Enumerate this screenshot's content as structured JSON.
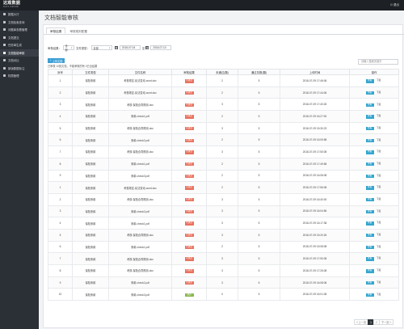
{
  "app": {
    "logo": "达观数据",
    "logo_sub": "DATA GRAND",
    "exit_label": "退出"
  },
  "sidebar": {
    "items": [
      {
        "label": "数据大厅",
        "active": false
      },
      {
        "label": "文档检索查询",
        "active": false
      },
      {
        "label": "问题库查看管理",
        "active": false
      },
      {
        "label": "文档提交",
        "active": false
      },
      {
        "label": "任务单生成",
        "active": false
      },
      {
        "label": "文档智能审核",
        "active": true
      },
      {
        "label": "文档对比",
        "active": false
      },
      {
        "label": "新版数据标注",
        "active": false
      },
      {
        "label": "权限管理",
        "active": false
      }
    ]
  },
  "page": {
    "title": "文档智能审核"
  },
  "tabs": [
    {
      "label": "审核结果",
      "active": true
    },
    {
      "label": "审核规则配置",
      "active": false
    }
  ],
  "filter": {
    "result_label": "审核结果：",
    "result_value": "全部",
    "type_label": "文件类型：",
    "type_value": "全部",
    "date_start": "2018-07-04",
    "date_to": "至",
    "date_end": "2018-07-10"
  },
  "upload_button": "上传文档",
  "hint": "已审核 10篇文档，不能审核的有 0已出结果",
  "search": {
    "placeholder": "请输入搜索关键字"
  },
  "table": {
    "columns": [
      "序号",
      "文件类型",
      "文件名称",
      "审核结果",
      "未通过(题)",
      "通过总数(题)",
      "上传时间",
      "操作"
    ],
    "rows": [
      {
        "no": "1",
        "type": "保险条款",
        "name": "考核规定-民法变动-word.doc",
        "result": "不通过",
        "failed": "2",
        "passed": "5",
        "time": "2018-07-09 17:46:06"
      },
      {
        "no": "2",
        "type": "保险条款",
        "name": "考核规定-民法变动-word.doc",
        "result": "不通过",
        "failed": "2",
        "passed": "5",
        "time": "2018-07-09 17:44:06"
      },
      {
        "no": "3",
        "type": "保险条款",
        "name": "考核-保险合同规则-doc",
        "result": "不通过",
        "failed": "3",
        "passed": "5",
        "time": "2018-07-09 17:40:26"
      },
      {
        "no": "4",
        "type": "保险条款",
        "name": "条款-check1.pdf",
        "result": "不通过",
        "failed": "2",
        "passed": "5",
        "time": "2018-07-09 16:27:00"
      },
      {
        "no": "5",
        "type": "保险条款",
        "name": "考核-保险合同规则-doc",
        "result": "不通过",
        "failed": "3",
        "passed": "5",
        "time": "2018-07-09 15:30:23"
      },
      {
        "no": "6",
        "type": "保险条款",
        "name": "条款-check2.pdf",
        "result": "不通过",
        "failed": "2",
        "passed": "5",
        "time": "2018-07-09 15:09:58"
      },
      {
        "no": "7",
        "type": "保险条款",
        "name": "考核-保险合同规则-doc",
        "result": "不通过",
        "failed": "3",
        "passed": "5",
        "time": "2018-07-09 17:50:08"
      },
      {
        "no": "8",
        "type": "保险条款",
        "name": "条款-check1.pdf",
        "result": "不通过",
        "failed": "2",
        "passed": "5",
        "time": "2018-07-09 17:49:58"
      },
      {
        "no": "9",
        "type": "保险条款",
        "name": "条款-check3.pdf",
        "result": "不通过",
        "failed": "2",
        "passed": "5",
        "time": "2018-07-09 16:08:08"
      },
      {
        "no": "1",
        "type": "保险条款",
        "name": "考核规定-民法变动-word.doc",
        "result": "不通过",
        "failed": "2",
        "passed": "5",
        "time": "2018-07-09 17:56:08"
      },
      {
        "no": "2",
        "type": "保险条款",
        "name": "考核-保险合同规则-doc",
        "result": "不通过",
        "failed": "3",
        "passed": "5",
        "time": "2018-07-09 16:40:00"
      },
      {
        "no": "3",
        "type": "保险条款",
        "name": "条款-check2.pdf",
        "result": "不通过",
        "failed": "3",
        "passed": "5",
        "time": "2018-07-09 16:04:56"
      },
      {
        "no": "4",
        "type": "保险条款",
        "name": "条款-check1.pdf",
        "result": "不通过",
        "failed": "3",
        "passed": "5",
        "time": "2018-07-09 16:17:38"
      },
      {
        "no": "5",
        "type": "保险条款",
        "name": "考核-保险合同规则-doc",
        "result": "不通过",
        "failed": "3",
        "passed": "5",
        "time": "2018-07-09 15:20:26"
      },
      {
        "no": "6",
        "type": "保险条款",
        "name": "条款-check1.pdf",
        "result": "不通过",
        "failed": "2",
        "passed": "5",
        "time": "2018-07-09 15:08:08"
      },
      {
        "no": "7",
        "type": "保险条款",
        "name": "考核-保险合同规则-doc",
        "result": "不通过",
        "failed": "3",
        "passed": "5",
        "time": "2018-07-09 17:50:08"
      },
      {
        "no": "8",
        "type": "保险条款",
        "name": "考核-保险合同规则-doc",
        "result": "不通过",
        "failed": "3",
        "passed": "5",
        "time": "2018-07-09 17:26:08"
      },
      {
        "no": "9",
        "type": "保险条款",
        "name": "条款-check2.pdf",
        "result": "不通过",
        "failed": "3",
        "passed": "5",
        "time": "2018-07-09 16:08:08"
      },
      {
        "no": "10",
        "type": "保险条款",
        "name": "条款-check3.pdf",
        "result": "通过",
        "failed": "0",
        "passed": "5",
        "time": "2018-07-09 16:01:08"
      }
    ],
    "edit_label": "查看",
    "download_label": "下载"
  },
  "pager": {
    "prev": "＜上一页",
    "pages": [
      "1",
      "2"
    ],
    "current": "1",
    "next": "下一页＞"
  },
  "colors": {
    "fail": "#e8725e",
    "pass": "#8ab84f",
    "accent": "#3c9ed5",
    "sidebar": "#2b2f36",
    "topbar": "#1d2024"
  }
}
